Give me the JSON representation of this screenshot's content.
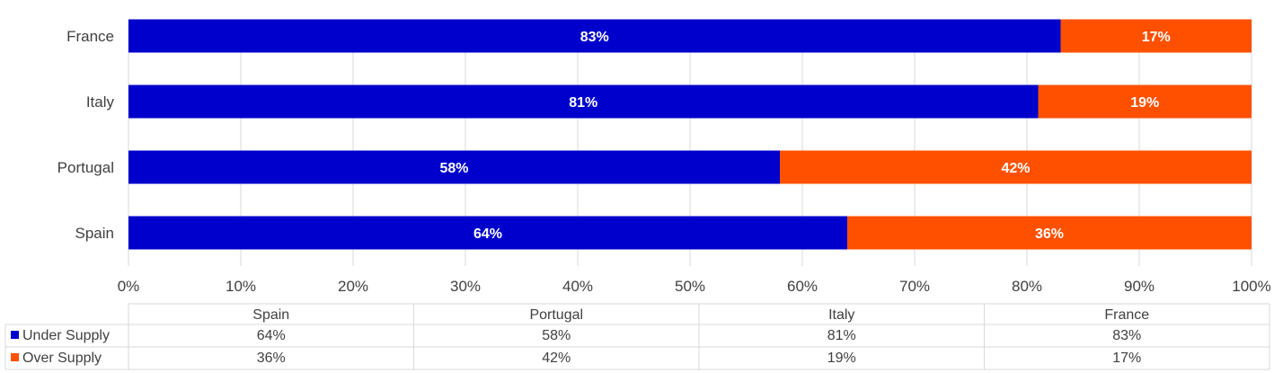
{
  "chart_data": {
    "type": "bar",
    "orientation": "horizontal",
    "stacking": "percent",
    "categories": [
      "Spain",
      "Portugal",
      "Italy",
      "France"
    ],
    "series": [
      {
        "name": "Under Supply",
        "values": [
          64,
          58,
          81,
          83
        ],
        "color": "#0000CC"
      },
      {
        "name": "Over Supply",
        "values": [
          36,
          42,
          19,
          17
        ],
        "color": "#FF5000"
      }
    ],
    "xlim": [
      0,
      100
    ],
    "xticks": [
      "0%",
      "10%",
      "20%",
      "30%",
      "40%",
      "50%",
      "60%",
      "70%",
      "80%",
      "90%",
      "100%"
    ],
    "grid": true,
    "legend": "data-table-bottom",
    "title": "",
    "xlabel": "",
    "ylabel": ""
  }
}
